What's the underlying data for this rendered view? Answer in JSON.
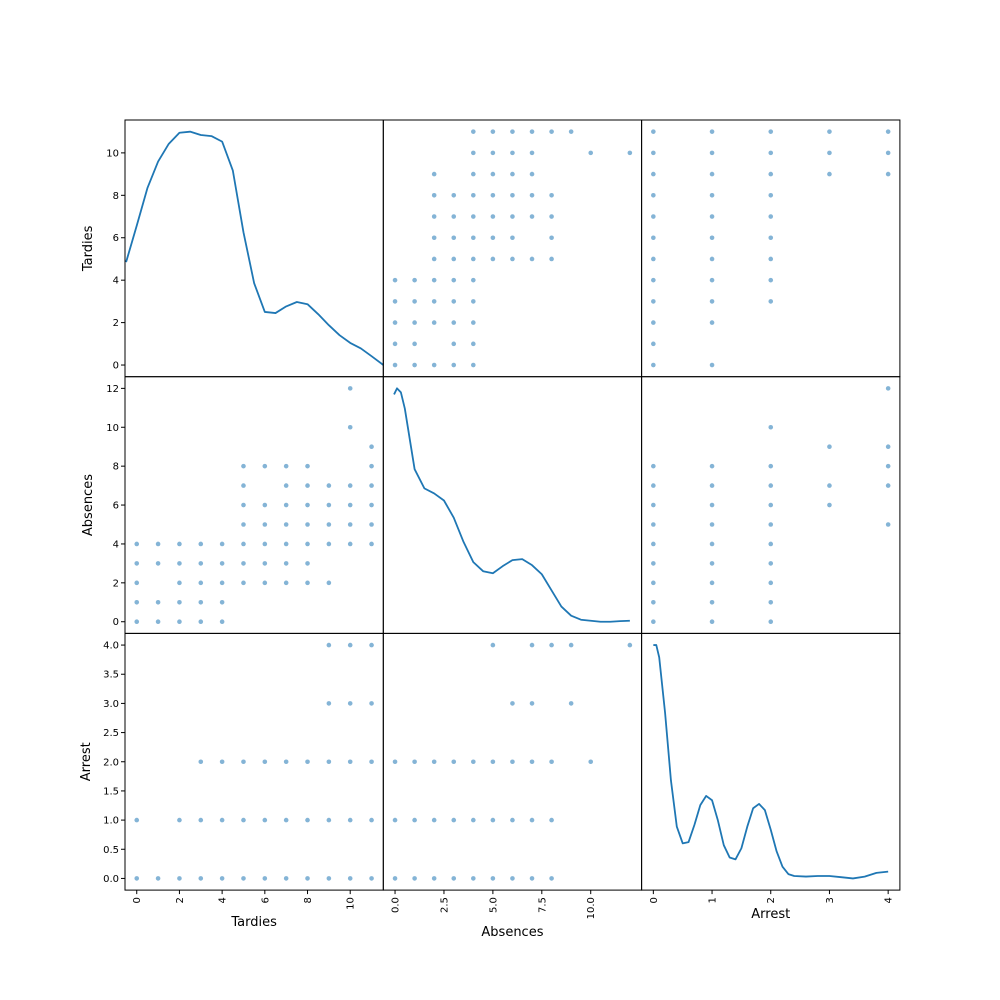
{
  "chart_data": {
    "type": "scatter",
    "kind": "scatter_matrix",
    "diagonal": "kde",
    "variables": [
      "Tardies",
      "Absences",
      "Arrest"
    ],
    "axis_labels": {
      "Tardies": "Tardies",
      "Absences": "Absences",
      "Arrest": "Arrest"
    },
    "ranges": {
      "Tardies": [
        -0.55,
        11.55
      ],
      "Absences": [
        -0.6,
        12.6
      ],
      "Arrest": [
        -0.2,
        4.2
      ]
    },
    "ticks": {
      "Tardies": {
        "x": [
          {
            "v": 0,
            "label": "0"
          },
          {
            "v": 2,
            "label": "2"
          },
          {
            "v": 4,
            "label": "4"
          },
          {
            "v": 6,
            "label": "6"
          },
          {
            "v": 8,
            "label": "8"
          },
          {
            "v": 10,
            "label": "10"
          }
        ],
        "y": [
          {
            "v": 0,
            "label": "0"
          },
          {
            "v": 2,
            "label": "2"
          },
          {
            "v": 4,
            "label": "4"
          },
          {
            "v": 6,
            "label": "6"
          },
          {
            "v": 8,
            "label": "8"
          },
          {
            "v": 10,
            "label": "10"
          }
        ]
      },
      "Absences": {
        "x": [
          {
            "v": 0,
            "label": "0.0"
          },
          {
            "v": 2.5,
            "label": "2.5"
          },
          {
            "v": 5,
            "label": "5.0"
          },
          {
            "v": 7.5,
            "label": "7.5"
          },
          {
            "v": 10,
            "label": "10.0"
          }
        ],
        "y": [
          {
            "v": 0,
            "label": "0"
          },
          {
            "v": 2,
            "label": "2"
          },
          {
            "v": 4,
            "label": "4"
          },
          {
            "v": 6,
            "label": "6"
          },
          {
            "v": 8,
            "label": "8"
          },
          {
            "v": 10,
            "label": "10"
          },
          {
            "v": 12,
            "label": "12"
          }
        ]
      },
      "Arrest": {
        "x": [
          {
            "v": 0,
            "label": "0"
          },
          {
            "v": 1,
            "label": "1"
          },
          {
            "v": 2,
            "label": "2"
          },
          {
            "v": 3,
            "label": "3"
          },
          {
            "v": 4,
            "label": "4"
          }
        ],
        "y": [
          {
            "v": 0,
            "label": "0.0"
          },
          {
            "v": 0.5,
            "label": "0.5"
          },
          {
            "v": 1,
            "label": "1.0"
          },
          {
            "v": 1.5,
            "label": "1.5"
          },
          {
            "v": 2,
            "label": "2.0"
          },
          {
            "v": 2.5,
            "label": "2.5"
          },
          {
            "v": 3,
            "label": "3.0"
          },
          {
            "v": 3.5,
            "label": "3.5"
          },
          {
            "v": 4,
            "label": "4.0"
          }
        ]
      }
    },
    "observations": {
      "Tardies_Absences": [
        [
          0,
          0
        ],
        [
          0,
          1
        ],
        [
          0,
          2
        ],
        [
          0,
          3
        ],
        [
          0,
          4
        ],
        [
          1,
          0
        ],
        [
          1,
          1
        ],
        [
          1,
          3
        ],
        [
          1,
          4
        ],
        [
          2,
          0
        ],
        [
          2,
          1
        ],
        [
          2,
          2
        ],
        [
          2,
          3
        ],
        [
          2,
          4
        ],
        [
          3,
          0
        ],
        [
          3,
          1
        ],
        [
          3,
          2
        ],
        [
          3,
          3
        ],
        [
          3,
          4
        ],
        [
          4,
          0
        ],
        [
          4,
          1
        ],
        [
          4,
          2
        ],
        [
          4,
          3
        ],
        [
          4,
          4
        ],
        [
          5,
          2
        ],
        [
          5,
          3
        ],
        [
          5,
          4
        ],
        [
          5,
          5
        ],
        [
          5,
          6
        ],
        [
          5,
          7
        ],
        [
          5,
          8
        ],
        [
          6,
          2
        ],
        [
          6,
          3
        ],
        [
          6,
          4
        ],
        [
          6,
          5
        ],
        [
          6,
          6
        ],
        [
          6,
          8
        ],
        [
          7,
          2
        ],
        [
          7,
          3
        ],
        [
          7,
          4
        ],
        [
          7,
          5
        ],
        [
          7,
          6
        ],
        [
          7,
          7
        ],
        [
          7,
          8
        ],
        [
          8,
          2
        ],
        [
          8,
          3
        ],
        [
          8,
          4
        ],
        [
          8,
          5
        ],
        [
          8,
          6
        ],
        [
          8,
          7
        ],
        [
          8,
          8
        ],
        [
          9,
          2
        ],
        [
          9,
          4
        ],
        [
          9,
          5
        ],
        [
          9,
          6
        ],
        [
          9,
          7
        ],
        [
          10,
          4
        ],
        [
          10,
          5
        ],
        [
          10,
          6
        ],
        [
          10,
          7
        ],
        [
          10,
          10
        ],
        [
          10,
          12
        ],
        [
          11,
          4
        ],
        [
          11,
          5
        ],
        [
          11,
          6
        ],
        [
          11,
          7
        ],
        [
          11,
          8
        ],
        [
          11,
          9
        ]
      ],
      "Tardies_Arrest": [
        [
          0,
          0
        ],
        [
          0,
          1
        ],
        [
          1,
          0
        ],
        [
          2,
          0
        ],
        [
          2,
          1
        ],
        [
          3,
          0
        ],
        [
          3,
          1
        ],
        [
          3,
          2
        ],
        [
          4,
          0
        ],
        [
          4,
          1
        ],
        [
          4,
          2
        ],
        [
          5,
          0
        ],
        [
          5,
          1
        ],
        [
          5,
          2
        ],
        [
          6,
          0
        ],
        [
          6,
          1
        ],
        [
          6,
          2
        ],
        [
          7,
          0
        ],
        [
          7,
          1
        ],
        [
          7,
          2
        ],
        [
          8,
          0
        ],
        [
          8,
          1
        ],
        [
          8,
          2
        ],
        [
          9,
          0
        ],
        [
          9,
          1
        ],
        [
          9,
          2
        ],
        [
          9,
          3
        ],
        [
          9,
          4
        ],
        [
          10,
          0
        ],
        [
          10,
          1
        ],
        [
          10,
          2
        ],
        [
          10,
          3
        ],
        [
          10,
          4
        ],
        [
          11,
          0
        ],
        [
          11,
          1
        ],
        [
          11,
          2
        ],
        [
          11,
          3
        ],
        [
          11,
          4
        ]
      ],
      "Absences_Arrest": [
        [
          0,
          0
        ],
        [
          0,
          1
        ],
        [
          0,
          2
        ],
        [
          1,
          0
        ],
        [
          1,
          1
        ],
        [
          1,
          2
        ],
        [
          2,
          0
        ],
        [
          2,
          1
        ],
        [
          2,
          2
        ],
        [
          3,
          0
        ],
        [
          3,
          1
        ],
        [
          3,
          2
        ],
        [
          4,
          0
        ],
        [
          4,
          1
        ],
        [
          4,
          2
        ],
        [
          5,
          0
        ],
        [
          5,
          1
        ],
        [
          5,
          2
        ],
        [
          5,
          4
        ],
        [
          6,
          0
        ],
        [
          6,
          1
        ],
        [
          6,
          2
        ],
        [
          6,
          3
        ],
        [
          7,
          0
        ],
        [
          7,
          1
        ],
        [
          7,
          2
        ],
        [
          7,
          3
        ],
        [
          7,
          4
        ],
        [
          8,
          0
        ],
        [
          8,
          1
        ],
        [
          8,
          2
        ],
        [
          8,
          4
        ],
        [
          9,
          3
        ],
        [
          9,
          4
        ],
        [
          10,
          2
        ],
        [
          12,
          4
        ]
      ]
    },
    "kde": {
      "Tardies": {
        "x": [
          -0.5,
          0,
          0.5,
          1,
          1.5,
          2,
          2.5,
          3,
          3.5,
          4,
          4.5,
          5,
          5.5,
          6,
          6.5,
          7,
          7.5,
          8,
          8.5,
          9,
          9.5,
          10,
          10.5,
          11,
          11.55
        ],
        "y": [
          4.85,
          6.5,
          8.2,
          9.4,
          10.2,
          10.7,
          10.75,
          10.6,
          10.55,
          10.3,
          9.0,
          6.2,
          3.9,
          2.6,
          2.55,
          2.85,
          3.05,
          2.95,
          2.5,
          2.0,
          1.55,
          1.2,
          0.95,
          0.6,
          0.2
        ]
      },
      "Absences": {
        "x": [
          -0.05,
          0.1,
          0.3,
          0.5,
          1,
          1.5,
          2,
          2.5,
          3,
          3.5,
          4,
          4.5,
          5,
          5.5,
          6,
          6.5,
          7,
          7.5,
          8,
          8.5,
          9,
          9.5,
          10,
          10.5,
          11,
          11.5,
          12
        ],
        "y": [
          11.5,
          11.8,
          11.6,
          10.8,
          7.8,
          6.85,
          6.6,
          6.25,
          5.4,
          4.2,
          3.2,
          2.75,
          2.65,
          3.0,
          3.3,
          3.35,
          3.05,
          2.6,
          1.8,
          1.0,
          0.55,
          0.35,
          0.3,
          0.25,
          0.25,
          0.28,
          0.3
        ]
      },
      "Arrest": {
        "x": [
          0,
          0.05,
          0.1,
          0.2,
          0.3,
          0.4,
          0.5,
          0.6,
          0.7,
          0.8,
          0.9,
          1,
          1.1,
          1.2,
          1.3,
          1.4,
          1.5,
          1.6,
          1.7,
          1.8,
          1.9,
          2,
          2.1,
          2.2,
          2.3,
          2.4,
          2.6,
          2.8,
          3,
          3.2,
          3.4,
          3.6,
          3.8,
          4
        ],
        "y": [
          3.9,
          3.9,
          3.7,
          2.8,
          1.7,
          0.95,
          0.68,
          0.7,
          0.98,
          1.3,
          1.45,
          1.38,
          1.05,
          0.65,
          0.45,
          0.42,
          0.6,
          0.95,
          1.25,
          1.32,
          1.22,
          0.9,
          0.55,
          0.3,
          0.18,
          0.15,
          0.14,
          0.15,
          0.15,
          0.13,
          0.11,
          0.14,
          0.2,
          0.22
        ]
      }
    }
  }
}
